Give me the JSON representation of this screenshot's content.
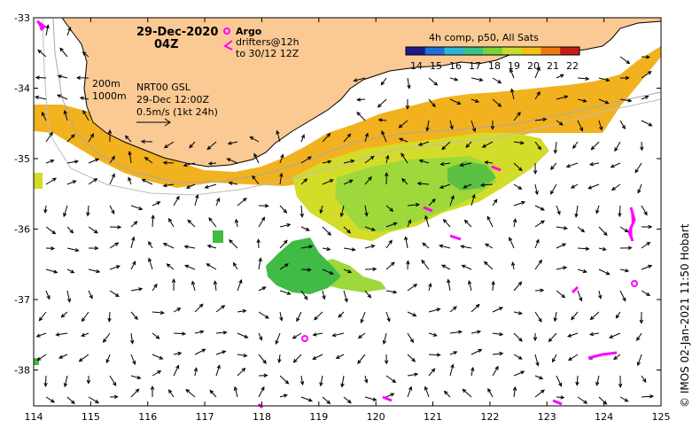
{
  "header": {
    "date": "29-Dec-2020",
    "hour": "04Z"
  },
  "argo_legend": {
    "argo_label": "Argo",
    "drifters_line1": "drifters@12h",
    "drifters_line2": "to 30/12 12Z"
  },
  "colorbar": {
    "title": "4h comp, p50, All Sats",
    "ticks": [
      "14",
      "15",
      "16",
      "17",
      "18",
      "19",
      "20",
      "21",
      "22"
    ],
    "colors": [
      "#1a1a8c",
      "#1f6fd6",
      "#2bb5d6",
      "#35c48a",
      "#7ad13a",
      "#c7dc2c",
      "#f2c018",
      "#ee7a12",
      "#c51c14"
    ]
  },
  "info": {
    "depth1": "200m",
    "depth2": "1000m",
    "product": "NRT00 GSL",
    "valid": "29-Dec 12:00Z",
    "scale": "0.5m/s (1kt 24h)"
  },
  "axes": {
    "x_ticks": [
      "114",
      "115",
      "116",
      "117",
      "118",
      "119",
      "120",
      "121",
      "122",
      "123",
      "124",
      "125"
    ],
    "y_ticks": [
      "-33",
      "-34",
      "-35",
      "-36",
      "-37",
      "-38"
    ]
  },
  "credit": "© IMOS 02-Jan-2021 11:50 Hobart",
  "colors": {
    "land": "#fbc994",
    "sst_warm": "#f2b21f",
    "sst_mid": "#d4dc2a",
    "sst_cool": "#9ed83a",
    "sst_cold": "#3fbb46",
    "argo": "#ff00ff"
  }
}
